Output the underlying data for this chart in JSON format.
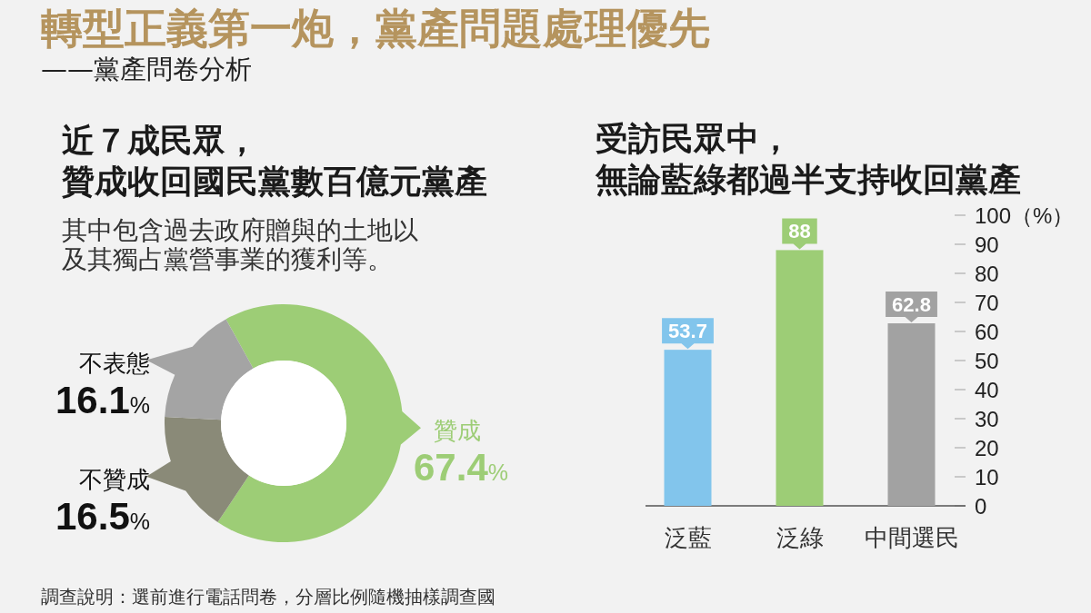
{
  "chart_data": [
    {
      "type": "other",
      "title": "轉型正義第一炮，黨產問題處理優先",
      "subtitle": "——黨產問卷分析",
      "annotations": [
        "調查說明：選前進行電話問卷，分層比例隨機抽樣調查國"
      ]
    },
    {
      "type": "donut",
      "title": "近７成民眾，贊成收回國民黨數百億元黨產",
      "subtitle": "其中包含過去政府贈與的土地以及其獨占黨營事業的獲利等。",
      "categories": [
        "贊成",
        "不贊成",
        "不表態"
      ],
      "values": [
        67.4,
        16.5,
        16.1
      ],
      "colors": [
        "#9dcd76",
        "#8a8a78",
        "#a4a4a4"
      ],
      "value_labels": [
        "67.4%",
        "16.5%",
        "16.1%"
      ]
    },
    {
      "type": "bar",
      "title": "受訪民眾中，無論藍綠都過半支持收回黨產",
      "categories": [
        "泛藍",
        "泛綠",
        "中間選民"
      ],
      "values": [
        53.7,
        88,
        62.8
      ],
      "colors": [
        "#82c5ec",
        "#9dcd76",
        "#a2a2a2"
      ],
      "ylim": [
        0,
        100
      ],
      "yticks": [
        0,
        10,
        20,
        30,
        40,
        50,
        60,
        70,
        80,
        90,
        {
          "value": 100,
          "label": "100（%）"
        }
      ],
      "data_labels": true
    }
  ]
}
